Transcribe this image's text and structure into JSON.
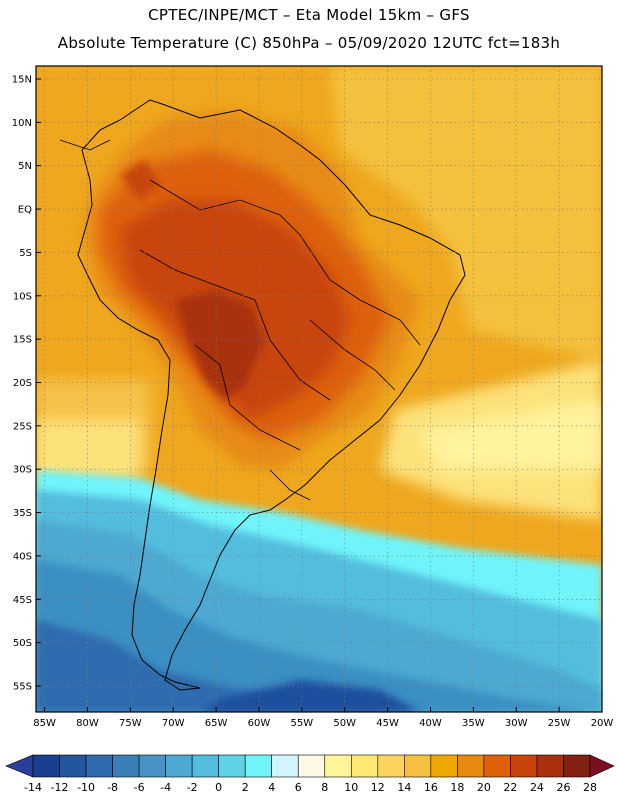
{
  "header": {
    "line1": "CPTEC/INPE/MCT –  Eta Model 15km – GFS",
    "line2": "Absolute Temperature (C) 850hPa – 05/09/2020 12UTC fct=183h"
  },
  "axes": {
    "lat_labels": [
      "15N",
      "10N",
      "5N",
      "EQ",
      "5S",
      "10S",
      "15S",
      "20S",
      "25S",
      "30S",
      "35S",
      "40S",
      "45S",
      "50S",
      "55S"
    ],
    "lat_values": [
      15,
      10,
      5,
      0,
      -5,
      -10,
      -15,
      -20,
      -25,
      -30,
      -35,
      -40,
      -45,
      -50,
      -55
    ],
    "lon_labels": [
      "85W",
      "80W",
      "75W",
      "70W",
      "65W",
      "60W",
      "55W",
      "50W",
      "45W",
      "40W",
      "35W",
      "30W",
      "25W",
      "20W"
    ],
    "lon_values": [
      -85,
      -80,
      -75,
      -70,
      -65,
      -60,
      -55,
      -50,
      -45,
      -40,
      -35,
      -30,
      -25,
      -20
    ],
    "lat_range": [
      -58,
      16.5
    ],
    "lon_range": [
      -86,
      -20
    ]
  },
  "colorbar": {
    "labels": [
      "-14",
      "-12",
      "-10",
      "-8",
      "-6",
      "-4",
      "-2",
      "0",
      "2",
      "4",
      "6",
      "8",
      "10",
      "12",
      "14",
      "16",
      "18",
      "20",
      "22",
      "24",
      "26",
      "28"
    ],
    "colors": [
      "#1a3f8f",
      "#24559f",
      "#2f6caf",
      "#3a7fb8",
      "#4694c6",
      "#4ea9d2",
      "#53bddd",
      "#5fd2e6",
      "#6ff4fa",
      "#d2f4fc",
      "#fff8e6",
      "#fff59a",
      "#ffe872",
      "#fbd45e",
      "#f5c040",
      "#f0a800",
      "#e88a12",
      "#de6008",
      "#c84408",
      "#a8300c",
      "#842012"
    ],
    "under_color": "#2a3f9a",
    "over_color": "#7a0f22"
  },
  "palette": {
    "bg_yellow": "#f5c13d",
    "bg_orange": "#eea71e"
  }
}
